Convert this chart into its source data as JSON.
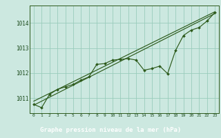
{
  "bg_color": "#cce8e0",
  "plot_bg_color": "#cce8e0",
  "grid_color": "#99ccbb",
  "line_color": "#2d5a1b",
  "marker_color": "#2d5a1b",
  "title": "Graphe pression niveau de la mer (hPa)",
  "title_bg": "#3a6e2a",
  "title_text_color": "#ffffff",
  "axis_text_color": "#1a4a1a",
  "xlim": [
    -0.5,
    23.5
  ],
  "ylim": [
    1010.4,
    1014.7
  ],
  "yticks": [
    1011,
    1012,
    1013,
    1014
  ],
  "xticks": [
    0,
    1,
    2,
    3,
    4,
    5,
    6,
    7,
    8,
    9,
    10,
    11,
    12,
    13,
    14,
    15,
    16,
    17,
    18,
    19,
    20,
    21,
    22,
    23
  ],
  "series1_x": [
    0,
    1,
    2,
    3,
    4,
    5,
    6,
    7,
    8,
    9,
    10,
    11,
    12,
    13,
    14,
    15,
    16,
    17,
    18,
    19,
    20,
    21,
    22,
    23
  ],
  "series1_y": [
    1010.75,
    1010.62,
    1011.15,
    1011.35,
    1011.45,
    1011.55,
    1011.72,
    1011.85,
    1012.35,
    1012.38,
    1012.52,
    1012.55,
    1012.58,
    1012.52,
    1012.12,
    1012.18,
    1012.28,
    1011.98,
    1012.9,
    1013.5,
    1013.72,
    1013.82,
    1014.08,
    1014.42
  ],
  "regline1_x": [
    0,
    23
  ],
  "regline1_y": [
    1010.72,
    1014.38
  ],
  "regline2_x": [
    0,
    23
  ],
  "regline2_y": [
    1010.88,
    1014.45
  ]
}
